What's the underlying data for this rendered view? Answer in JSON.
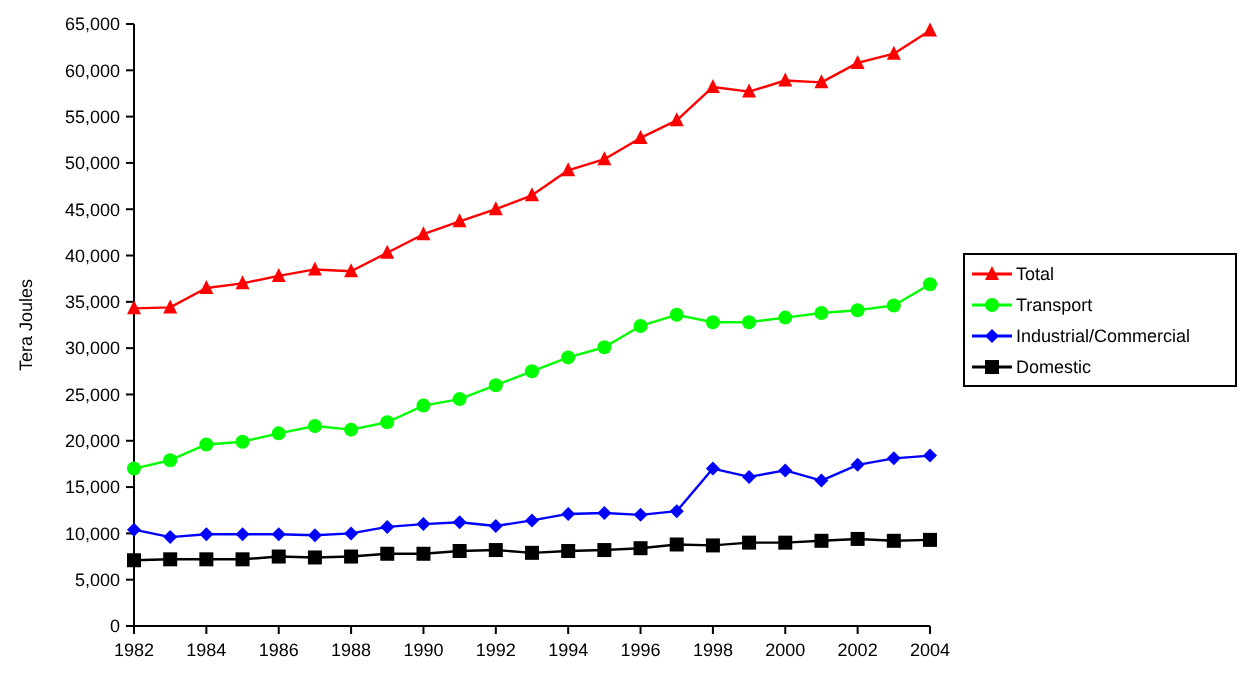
{
  "chart_data": {
    "type": "line",
    "ylabel": "Tera Joules",
    "x": [
      1982,
      1983,
      1984,
      1985,
      1986,
      1987,
      1988,
      1989,
      1990,
      1991,
      1992,
      1993,
      1994,
      1995,
      1996,
      1997,
      1998,
      1999,
      2000,
      2001,
      2002,
      2003,
      2004
    ],
    "xlim": [
      1982,
      2004
    ],
    "xticks": [
      1982,
      1984,
      1986,
      1988,
      1990,
      1992,
      1994,
      1996,
      1998,
      2000,
      2002,
      2004
    ],
    "ylim": [
      0,
      65000
    ],
    "yticks": [
      {
        "value": 0,
        "label": "0"
      },
      {
        "value": 5000,
        "label": "5,000"
      },
      {
        "value": 10000,
        "label": "10,000"
      },
      {
        "value": 15000,
        "label": "15,000"
      },
      {
        "value": 20000,
        "label": "20,000"
      },
      {
        "value": 25000,
        "label": "25,000"
      },
      {
        "value": 30000,
        "label": "30,000"
      },
      {
        "value": 35000,
        "label": "35,000"
      },
      {
        "value": 40000,
        "label": "40,000"
      },
      {
        "value": 45000,
        "label": "45,000"
      },
      {
        "value": 50000,
        "label": "50,000"
      },
      {
        "value": 55000,
        "label": "55,000"
      },
      {
        "value": 60000,
        "label": "60,000"
      },
      {
        "value": 65000,
        "label": "65,000"
      }
    ],
    "grid": false,
    "legend": "right",
    "series": [
      {
        "name": "Total",
        "color": "#ff0000",
        "marker": "triangle",
        "values": [
          34300,
          34400,
          36500,
          37000,
          37800,
          38500,
          38300,
          40300,
          42300,
          43700,
          45000,
          46500,
          49200,
          50400,
          52700,
          54600,
          58200,
          57700,
          58900,
          58700,
          60800,
          61800,
          64300
        ]
      },
      {
        "name": "Transport",
        "color": "#00ff00",
        "marker": "circle",
        "values": [
          17000,
          17900,
          19600,
          19900,
          20800,
          21600,
          21200,
          22000,
          23800,
          24500,
          26000,
          27500,
          29000,
          30100,
          32400,
          33600,
          32800,
          32800,
          33300,
          33800,
          34100,
          34600,
          36900
        ]
      },
      {
        "name": "Industrial/Commercial",
        "color": "#0000ff",
        "marker": "diamond",
        "values": [
          10400,
          9600,
          9900,
          9900,
          9900,
          9800,
          10000,
          10700,
          11000,
          11200,
          10800,
          11400,
          12100,
          12200,
          12000,
          12400,
          17000,
          16100,
          16800,
          15700,
          17400,
          18100,
          18400
        ]
      },
      {
        "name": "Domestic",
        "color": "#000000",
        "marker": "square",
        "values": [
          7100,
          7200,
          7200,
          7200,
          7500,
          7400,
          7500,
          7800,
          7800,
          8100,
          8200,
          7900,
          8100,
          8200,
          8400,
          8800,
          8700,
          9000,
          9000,
          9200,
          9400,
          9200,
          9300
        ]
      }
    ]
  }
}
